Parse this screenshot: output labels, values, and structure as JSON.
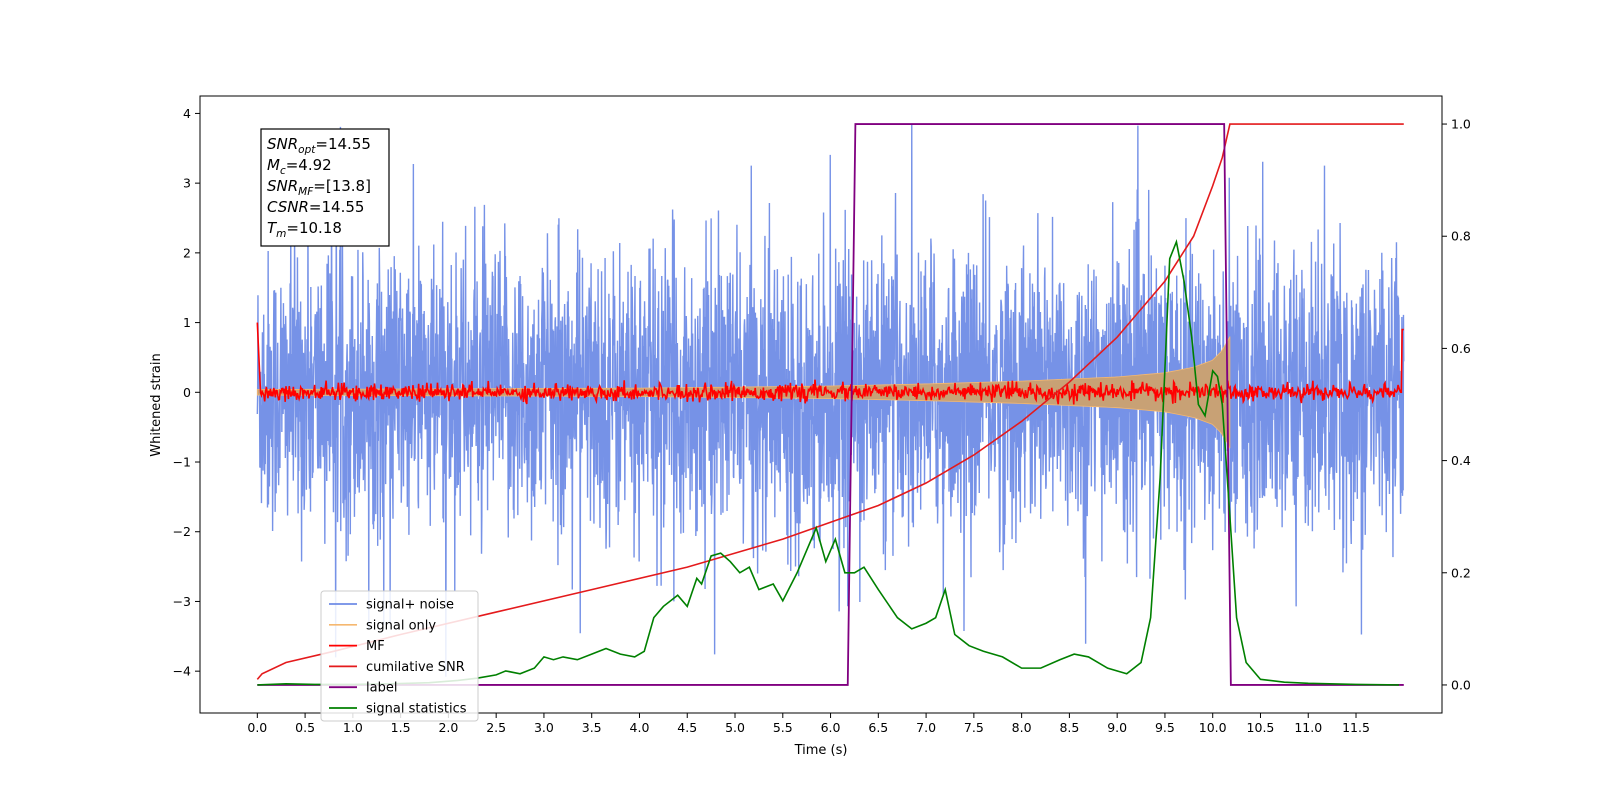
{
  "chart_data": {
    "type": "line",
    "title": "",
    "xlabel": "Time (s)",
    "ylabel": "Whitened strain",
    "y2label": "",
    "xlim": [
      -0.6,
      12.4
    ],
    "ylim": [
      -4.6,
      4.25
    ],
    "y2lim": [
      -0.05,
      1.05
    ],
    "x_ticks": [
      "0.0",
      "0.5",
      "1.0",
      "1.5",
      "2.0",
      "2.5",
      "3.0",
      "3.5",
      "4.0",
      "4.5",
      "5.0",
      "5.5",
      "6.0",
      "6.5",
      "7.0",
      "7.5",
      "8.0",
      "8.5",
      "9.0",
      "9.5",
      "10.0",
      "10.5",
      "11.0",
      "11.5"
    ],
    "y_ticks": [
      "4",
      "3",
      "2",
      "1",
      "0",
      "−1",
      "−2",
      "−3",
      "−4"
    ],
    "y2_ticks": [
      "1.0",
      "0.8",
      "0.6",
      "0.4",
      "0.2",
      "0.0"
    ],
    "legend_position": "lower-left",
    "colors": {
      "signal_noise": "#6f8ce6",
      "signal_only": "#f5b870",
      "signal_fill": "#c8a175",
      "mf": "#ff0000",
      "cumulative_snr": "#e41a1c",
      "label": "#800080",
      "signal_statistics": "#008000"
    },
    "stats_lines": [
      {
        "name": "SNR",
        "sub": "opt",
        "value": "=14.55"
      },
      {
        "name": "M",
        "sub": "c",
        "value": "=4.92"
      },
      {
        "name": "SNR",
        "sub": "MF",
        "value": "=[13.8]"
      },
      {
        "name": "CSNR",
        "sub": "",
        "value": "=14.55"
      },
      {
        "name": "T",
        "sub": "m",
        "value": "=10.18"
      }
    ],
    "series": [
      {
        "key": "signal_noise",
        "name": "signal+ noise",
        "axis": "left",
        "x_range": [
          0.0,
          12.0
        ],
        "approx_amplitude": 2.3,
        "peak": 3.85
      },
      {
        "key": "signal_only",
        "name": "signal only",
        "axis": "left",
        "x_range": [
          0.0,
          10.18
        ],
        "envelope_x": [
          0.0,
          2.0,
          4.0,
          6.0,
          7.0,
          8.0,
          9.0,
          9.5,
          9.8,
          10.0,
          10.1,
          10.18
        ],
        "envelope_y": [
          0.04,
          0.05,
          0.06,
          0.09,
          0.12,
          0.16,
          0.22,
          0.28,
          0.36,
          0.46,
          0.6,
          0.8
        ]
      },
      {
        "key": "mf",
        "name": "MF",
        "axis": "left",
        "x_range": [
          0.0,
          12.0
        ],
        "approx_amplitude": 0.15
      },
      {
        "key": "cumulative_snr",
        "name": "cumilative SNR",
        "axis": "right",
        "x": [
          0.0,
          0.05,
          0.3,
          0.8,
          1.5,
          2.5,
          3.5,
          4.5,
          5.5,
          6.0,
          6.5,
          7.0,
          7.5,
          8.0,
          8.5,
          9.0,
          9.5,
          9.8,
          10.0,
          10.1,
          10.18,
          12.0
        ],
        "y": [
          0.01,
          0.02,
          0.04,
          0.06,
          0.09,
          0.13,
          0.17,
          0.21,
          0.26,
          0.29,
          0.32,
          0.36,
          0.41,
          0.47,
          0.54,
          0.62,
          0.72,
          0.8,
          0.89,
          0.94,
          1.0,
          1.0
        ]
      },
      {
        "key": "label",
        "name": "label",
        "axis": "right",
        "x": [
          0.0,
          6.18,
          6.26,
          10.12,
          10.19,
          12.0
        ],
        "y": [
          0.0,
          0.0,
          1.0,
          1.0,
          0.0,
          0.0
        ]
      },
      {
        "key": "signal_statistics",
        "name": "signal statistics",
        "axis": "right",
        "x": [
          0.0,
          0.3,
          0.6,
          1.0,
          1.4,
          1.8,
          2.1,
          2.3,
          2.5,
          2.6,
          2.75,
          2.9,
          3.0,
          3.1,
          3.2,
          3.35,
          3.5,
          3.65,
          3.8,
          3.95,
          4.05,
          4.15,
          4.25,
          4.4,
          4.5,
          4.6,
          4.65,
          4.75,
          4.85,
          4.95,
          5.05,
          5.15,
          5.25,
          5.4,
          5.5,
          5.65,
          5.75,
          5.85,
          5.95,
          6.05,
          6.15,
          6.25,
          6.35,
          6.5,
          6.7,
          6.85,
          7.0,
          7.1,
          7.2,
          7.3,
          7.45,
          7.6,
          7.8,
          8.0,
          8.2,
          8.4,
          8.55,
          8.7,
          8.9,
          9.1,
          9.25,
          9.35,
          9.45,
          9.55,
          9.62,
          9.7,
          9.78,
          9.85,
          9.92,
          10.0,
          10.05,
          10.1,
          10.18,
          10.25,
          10.35,
          10.5,
          10.75,
          11.0,
          11.5,
          11.95
        ],
        "y": [
          0.0,
          0.002,
          0.001,
          0.001,
          0.002,
          0.004,
          0.008,
          0.012,
          0.018,
          0.025,
          0.02,
          0.03,
          0.05,
          0.045,
          0.05,
          0.045,
          0.055,
          0.065,
          0.055,
          0.05,
          0.06,
          0.12,
          0.14,
          0.16,
          0.14,
          0.19,
          0.18,
          0.23,
          0.235,
          0.22,
          0.2,
          0.21,
          0.17,
          0.18,
          0.15,
          0.2,
          0.24,
          0.28,
          0.22,
          0.26,
          0.2,
          0.2,
          0.21,
          0.17,
          0.12,
          0.1,
          0.11,
          0.12,
          0.17,
          0.09,
          0.07,
          0.06,
          0.05,
          0.03,
          0.03,
          0.045,
          0.055,
          0.05,
          0.03,
          0.02,
          0.04,
          0.12,
          0.37,
          0.76,
          0.79,
          0.72,
          0.62,
          0.5,
          0.48,
          0.56,
          0.55,
          0.5,
          0.3,
          0.12,
          0.04,
          0.01,
          0.005,
          0.003,
          0.001,
          0.0
        ]
      }
    ]
  }
}
